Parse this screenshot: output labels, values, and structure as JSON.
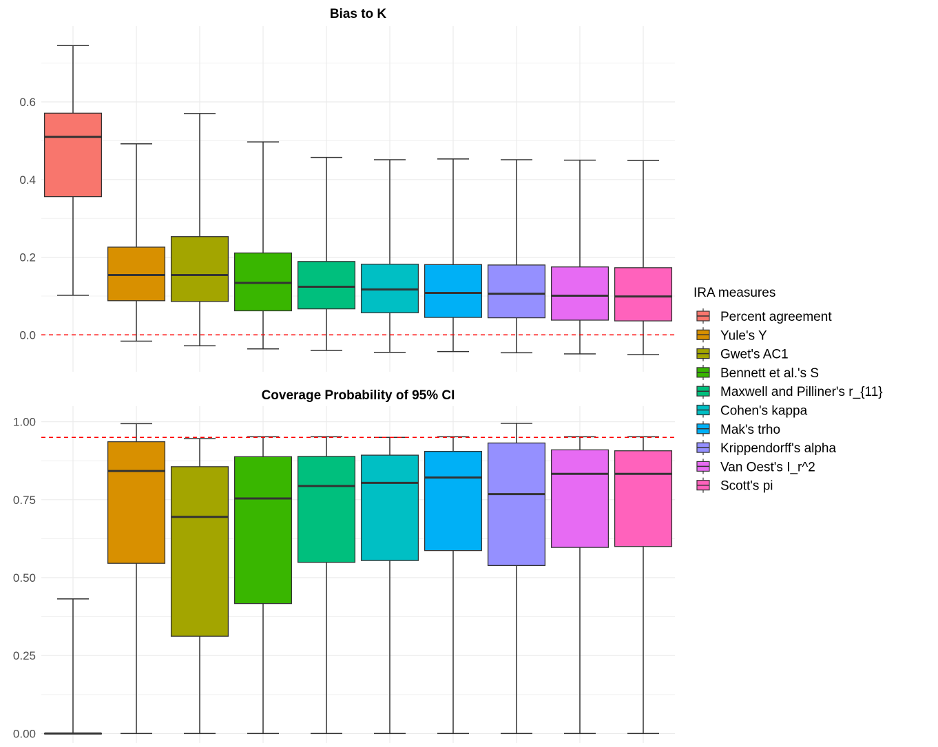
{
  "chart_data": [
    {
      "type": "boxplot",
      "title": "Bias to K",
      "ylim": [
        -0.095,
        0.795
      ],
      "yticks": [
        0.0,
        0.2,
        0.4,
        0.6
      ],
      "ytick_labels": [
        "0.0",
        "0.2",
        "0.4",
        "0.6"
      ],
      "reference_line": 0.0,
      "reference_line_color": "#ff0000",
      "grid": true,
      "boxes": [
        {
          "name": "Percent agreement",
          "min": 0.102,
          "q1": 0.356,
          "median": 0.51,
          "q3": 0.571,
          "max": 0.745
        },
        {
          "name": "Yule's Y",
          "min": -0.016,
          "q1": 0.088,
          "median": 0.154,
          "q3": 0.226,
          "max": 0.492
        },
        {
          "name": "Gwet's AC1",
          "min": -0.028,
          "q1": 0.086,
          "median": 0.154,
          "q3": 0.253,
          "max": 0.57
        },
        {
          "name": "Bennett et al.'s S",
          "min": -0.036,
          "q1": 0.062,
          "median": 0.134,
          "q3": 0.211,
          "max": 0.497
        },
        {
          "name": "Maxwell and Pilliner's r_{11}",
          "min": -0.04,
          "q1": 0.067,
          "median": 0.124,
          "q3": 0.189,
          "max": 0.457
        },
        {
          "name": "Cohen's kappa",
          "min": -0.045,
          "q1": 0.057,
          "median": 0.117,
          "q3": 0.182,
          "max": 0.451
        },
        {
          "name": "Mak's trho",
          "min": -0.043,
          "q1": 0.045,
          "median": 0.108,
          "q3": 0.181,
          "max": 0.453
        },
        {
          "name": "Krippendorff's alpha",
          "min": -0.046,
          "q1": 0.044,
          "median": 0.106,
          "q3": 0.18,
          "max": 0.451
        },
        {
          "name": "Van Oest's I_r^2",
          "min": -0.049,
          "q1": 0.038,
          "median": 0.101,
          "q3": 0.175,
          "max": 0.45
        },
        {
          "name": "Scott's pi",
          "min": -0.051,
          "q1": 0.036,
          "median": 0.099,
          "q3": 0.173,
          "max": 0.449
        }
      ]
    },
    {
      "type": "boxplot",
      "title": "Coverage Probability of 95% CI",
      "ylim": [
        -0.03,
        1.05
      ],
      "yticks": [
        0.0,
        0.25,
        0.5,
        0.75,
        1.0
      ],
      "ytick_labels": [
        "0.00",
        "0.25",
        "0.50",
        "0.75",
        "1.00"
      ],
      "reference_line": 0.95,
      "reference_line_color": "#ff0000",
      "grid": true,
      "boxes": [
        {
          "name": "Percent agreement",
          "min": 0.0,
          "q1": 0.0,
          "median": 0.0,
          "q3": 0.0,
          "max": 0.432
        },
        {
          "name": "Yule's Y",
          "min": 0.0,
          "q1": 0.546,
          "median": 0.842,
          "q3": 0.936,
          "max": 0.994
        },
        {
          "name": "Gwet's AC1",
          "min": 0.0,
          "q1": 0.312,
          "median": 0.695,
          "q3": 0.856,
          "max": 0.946
        },
        {
          "name": "Bennett et al.'s S",
          "min": 0.0,
          "q1": 0.417,
          "median": 0.754,
          "q3": 0.888,
          "max": 0.952
        },
        {
          "name": "Maxwell and Pilliner's r_{11}",
          "min": 0.0,
          "q1": 0.549,
          "median": 0.794,
          "q3": 0.889,
          "max": 0.952
        },
        {
          "name": "Cohen's kappa",
          "min": 0.0,
          "q1": 0.555,
          "median": 0.804,
          "q3": 0.893,
          "max": 0.95
        },
        {
          "name": "Mak's trho",
          "min": 0.0,
          "q1": 0.587,
          "median": 0.821,
          "q3": 0.905,
          "max": 0.952
        },
        {
          "name": "Krippendorff's alpha",
          "min": 0.0,
          "q1": 0.539,
          "median": 0.768,
          "q3": 0.932,
          "max": 0.995
        },
        {
          "name": "Van Oest's I_r^2",
          "min": 0.0,
          "q1": 0.597,
          "median": 0.833,
          "q3": 0.91,
          "max": 0.952
        },
        {
          "name": "Scott's pi",
          "min": 0.0,
          "q1": 0.6,
          "median": 0.833,
          "q3": 0.907,
          "max": 0.952
        }
      ]
    }
  ],
  "legend": {
    "title": "IRA measures",
    "items": [
      {
        "label": "Percent agreement",
        "color": "#F8766D"
      },
      {
        "label": "Yule's Y",
        "color": "#D89000"
      },
      {
        "label": "Gwet's AC1",
        "color": "#A3A500"
      },
      {
        "label": "Bennett et al.'s S",
        "color": "#39B600"
      },
      {
        "label": "Maxwell and Pilliner's r_{11}",
        "color": "#00BF7D"
      },
      {
        "label": "Cohen's kappa",
        "color": "#00BFC4"
      },
      {
        "label": "Mak's trho",
        "color": "#00B0F6"
      },
      {
        "label": "Krippendorff's alpha",
        "color": "#9590FF"
      },
      {
        "label": "Van Oest's I_r^2",
        "color": "#E76BF3"
      },
      {
        "label": "Scott's pi",
        "color": "#FF62BC"
      }
    ]
  }
}
